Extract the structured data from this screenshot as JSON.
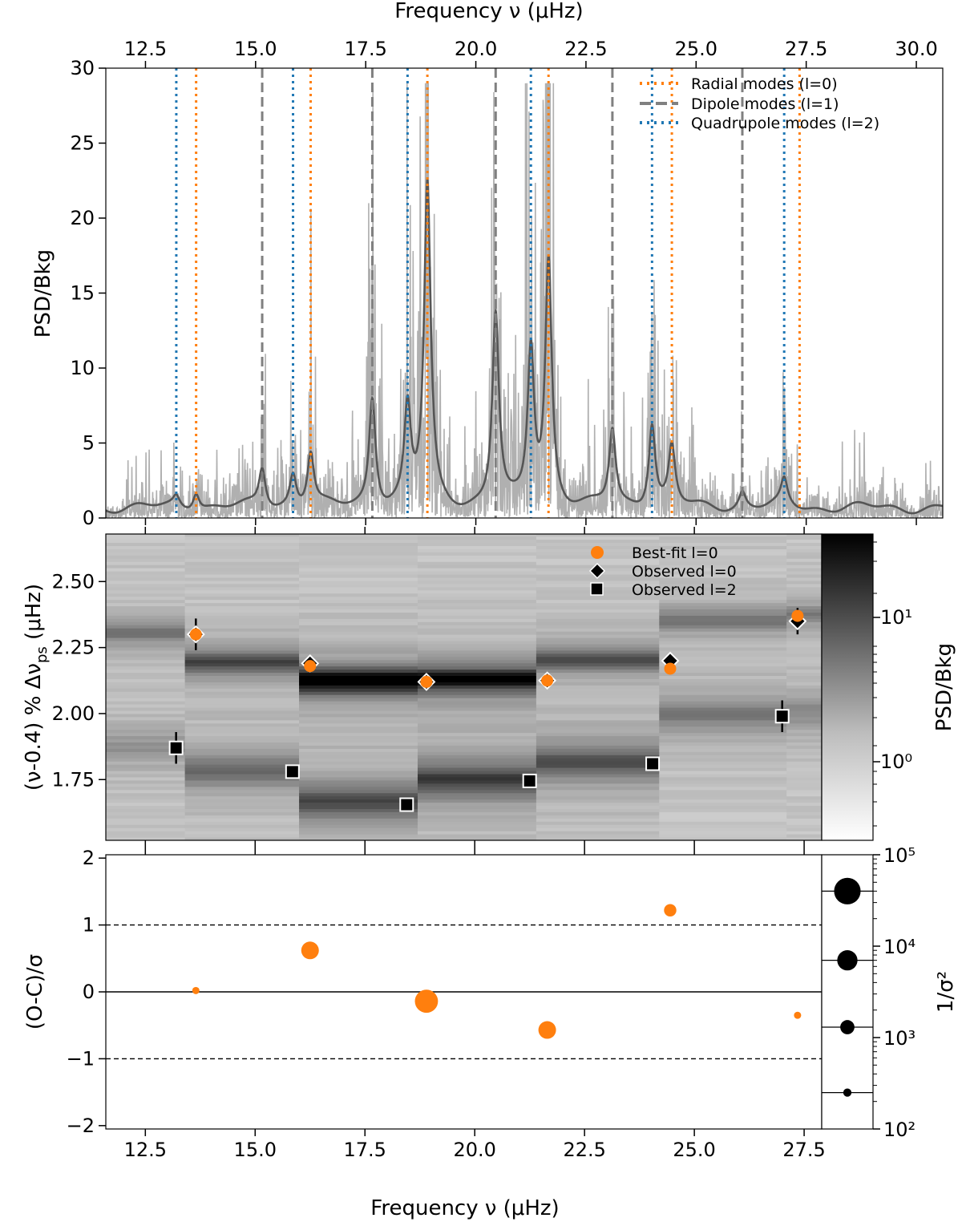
{
  "chart_data": [
    {
      "panel": "spectrum",
      "type": "line",
      "title": "",
      "xlabel": "Frequency ν (μHz)",
      "ylabel": "PSD/Bkg",
      "xlim": [
        11.6,
        30.6
      ],
      "ylim": [
        0,
        30
      ],
      "xticks": [
        "12.5",
        "15.0",
        "17.5",
        "20.0",
        "22.5",
        "25.0",
        "27.5",
        "30.0"
      ],
      "yticks": [
        "0",
        "5",
        "10",
        "15",
        "20",
        "25",
        "30"
      ],
      "legend": [
        {
          "label": "Radial modes (l=0)",
          "style": "dotted",
          "color": "#ff7f0e"
        },
        {
          "label": "Dipole modes (l=1)",
          "style": "dashed",
          "color": "#808080"
        },
        {
          "label": "Quadrupole modes (l=2)",
          "style": "dotted",
          "color": "#1f77b4"
        }
      ],
      "radial_modes": [
        13.65,
        16.25,
        18.9,
        21.65,
        24.45,
        27.35
      ],
      "dipole_modes": [
        15.15,
        17.65,
        20.45,
        23.1,
        26.05
      ],
      "quadrupole_modes": [
        13.2,
        15.85,
        18.45,
        21.25,
        24.0,
        27.0
      ],
      "smoothed_peaks": [
        {
          "x": 13.2,
          "y": 1.4
        },
        {
          "x": 13.65,
          "y": 1.9
        },
        {
          "x": 15.15,
          "y": 3.3
        },
        {
          "x": 15.85,
          "y": 2.9
        },
        {
          "x": 16.25,
          "y": 4.3
        },
        {
          "x": 17.65,
          "y": 8.0
        },
        {
          "x": 18.45,
          "y": 7.0
        },
        {
          "x": 18.9,
          "y": 22.0
        },
        {
          "x": 20.45,
          "y": 13.5
        },
        {
          "x": 21.25,
          "y": 11.0
        },
        {
          "x": 21.65,
          "y": 17.0
        },
        {
          "x": 23.1,
          "y": 5.8
        },
        {
          "x": 24.0,
          "y": 6.3
        },
        {
          "x": 24.45,
          "y": 4.6
        },
        {
          "x": 26.05,
          "y": 1.8
        },
        {
          "x": 27.0,
          "y": 2.4
        }
      ]
    },
    {
      "panel": "echelle",
      "type": "heatmap",
      "xlabel": "",
      "ylabel": "(ν-0.4) % Δν_ps (μHz)",
      "colorbar_label": "PSD/Bkg",
      "colorbar_ticks": [
        "10⁰",
        "10¹"
      ],
      "xlim": [
        11.6,
        27.9
      ],
      "ylim": [
        1.52,
        2.68
      ],
      "yticks": [
        "1.75",
        "2.00",
        "2.25",
        "2.50"
      ],
      "legend": [
        {
          "label": "Best-fit l=0",
          "marker": "circle",
          "color": "#ff7f0e"
        },
        {
          "label": "Observed l=0",
          "marker": "diamond",
          "color": "#000000"
        },
        {
          "label": "Observed l=2",
          "marker": "square",
          "color": "#000000"
        }
      ],
      "bestfit_l0": [
        {
          "x": 13.65,
          "y": 2.3
        },
        {
          "x": 16.25,
          "y": 2.18
        },
        {
          "x": 18.9,
          "y": 2.12
        },
        {
          "x": 21.65,
          "y": 2.125
        },
        {
          "x": 24.45,
          "y": 2.17
        },
        {
          "x": 27.35,
          "y": 2.37
        }
      ],
      "observed_l0": [
        {
          "x": 13.65,
          "y": 2.3,
          "err": 0.06
        },
        {
          "x": 16.25,
          "y": 2.19,
          "err": 0.0
        },
        {
          "x": 18.9,
          "y": 2.12,
          "err": 0.0
        },
        {
          "x": 21.65,
          "y": 2.125,
          "err": 0.0
        },
        {
          "x": 24.45,
          "y": 2.2,
          "err": 0.0
        },
        {
          "x": 27.35,
          "y": 2.35,
          "err": 0.05
        }
      ],
      "observed_l2": [
        {
          "x": 13.2,
          "y": 1.87,
          "err": 0.06
        },
        {
          "x": 15.85,
          "y": 1.78,
          "err": 0.0
        },
        {
          "x": 18.45,
          "y": 1.655,
          "err": 0.0
        },
        {
          "x": 21.25,
          "y": 1.745,
          "err": 0.0
        },
        {
          "x": 24.05,
          "y": 1.81,
          "err": 0.0
        },
        {
          "x": 27.0,
          "y": 1.99,
          "err": 0.06
        }
      ]
    },
    {
      "panel": "residuals",
      "type": "scatter",
      "xlabel": "Frequency ν (μHz)",
      "ylabel": "(O-C)/σ",
      "xlim": [
        11.6,
        27.9
      ],
      "ylim": [
        -2.05,
        2.05
      ],
      "xticks": [
        "12.5",
        "15.0",
        "17.5",
        "20.0",
        "22.5",
        "25.0",
        "27.5"
      ],
      "yticks": [
        "−2",
        "−1",
        "0",
        "1",
        "2"
      ],
      "reference_lines": [
        0,
        1,
        -1
      ],
      "points": [
        {
          "x": 13.65,
          "y": 0.02,
          "weight": 250
        },
        {
          "x": 16.25,
          "y": 0.62,
          "weight": 7000
        },
        {
          "x": 18.9,
          "y": -0.14,
          "weight": 40000
        },
        {
          "x": 21.65,
          "y": -0.57,
          "weight": 7000
        },
        {
          "x": 24.45,
          "y": 1.22,
          "weight": 1300
        },
        {
          "x": 27.35,
          "y": -0.35,
          "weight": 250
        }
      ],
      "size_legend": {
        "label": "1/σ²",
        "ticks": [
          "10²",
          "10³",
          "10⁴",
          "10⁵"
        ],
        "weights": [
          250,
          1300,
          7000,
          40000
        ]
      }
    }
  ]
}
